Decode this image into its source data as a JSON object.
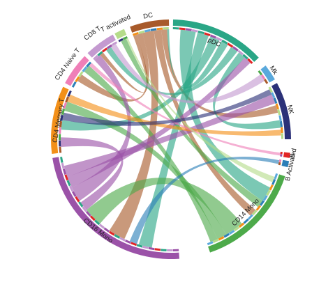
{
  "segments": [
    {
      "id": "pDC",
      "label": "pDC",
      "color": "#2aa686"
    },
    {
      "id": "Mk",
      "label": "Mk",
      "color": "#5aa9dc"
    },
    {
      "id": "NK",
      "label": "NK",
      "color": "#2b3178"
    },
    {
      "id": "B",
      "label": "B",
      "color": "#e22424"
    },
    {
      "id": "BAct",
      "label": "B Activated",
      "color": "#2c7fb8"
    },
    {
      "id": "CD14",
      "label": "CD14 Mono",
      "color": "#4daa4a"
    },
    {
      "id": "CD16",
      "label": "CD16 Mono",
      "color": "#9b52a8"
    },
    {
      "id": "CD4M",
      "label": "CD4 Memory T",
      "color": "#f39019"
    },
    {
      "id": "CD4N",
      "label": "CD4 Naive T",
      "color": "#ef7fb8"
    },
    {
      "id": "CD8",
      "label": "CD8 T",
      "color": "#c49ad0"
    },
    {
      "id": "Tact",
      "label": "T activated",
      "color": "#b5dc8a"
    },
    {
      "id": "DC",
      "label": "DC",
      "color": "#a85a2a"
    }
  ]
}
